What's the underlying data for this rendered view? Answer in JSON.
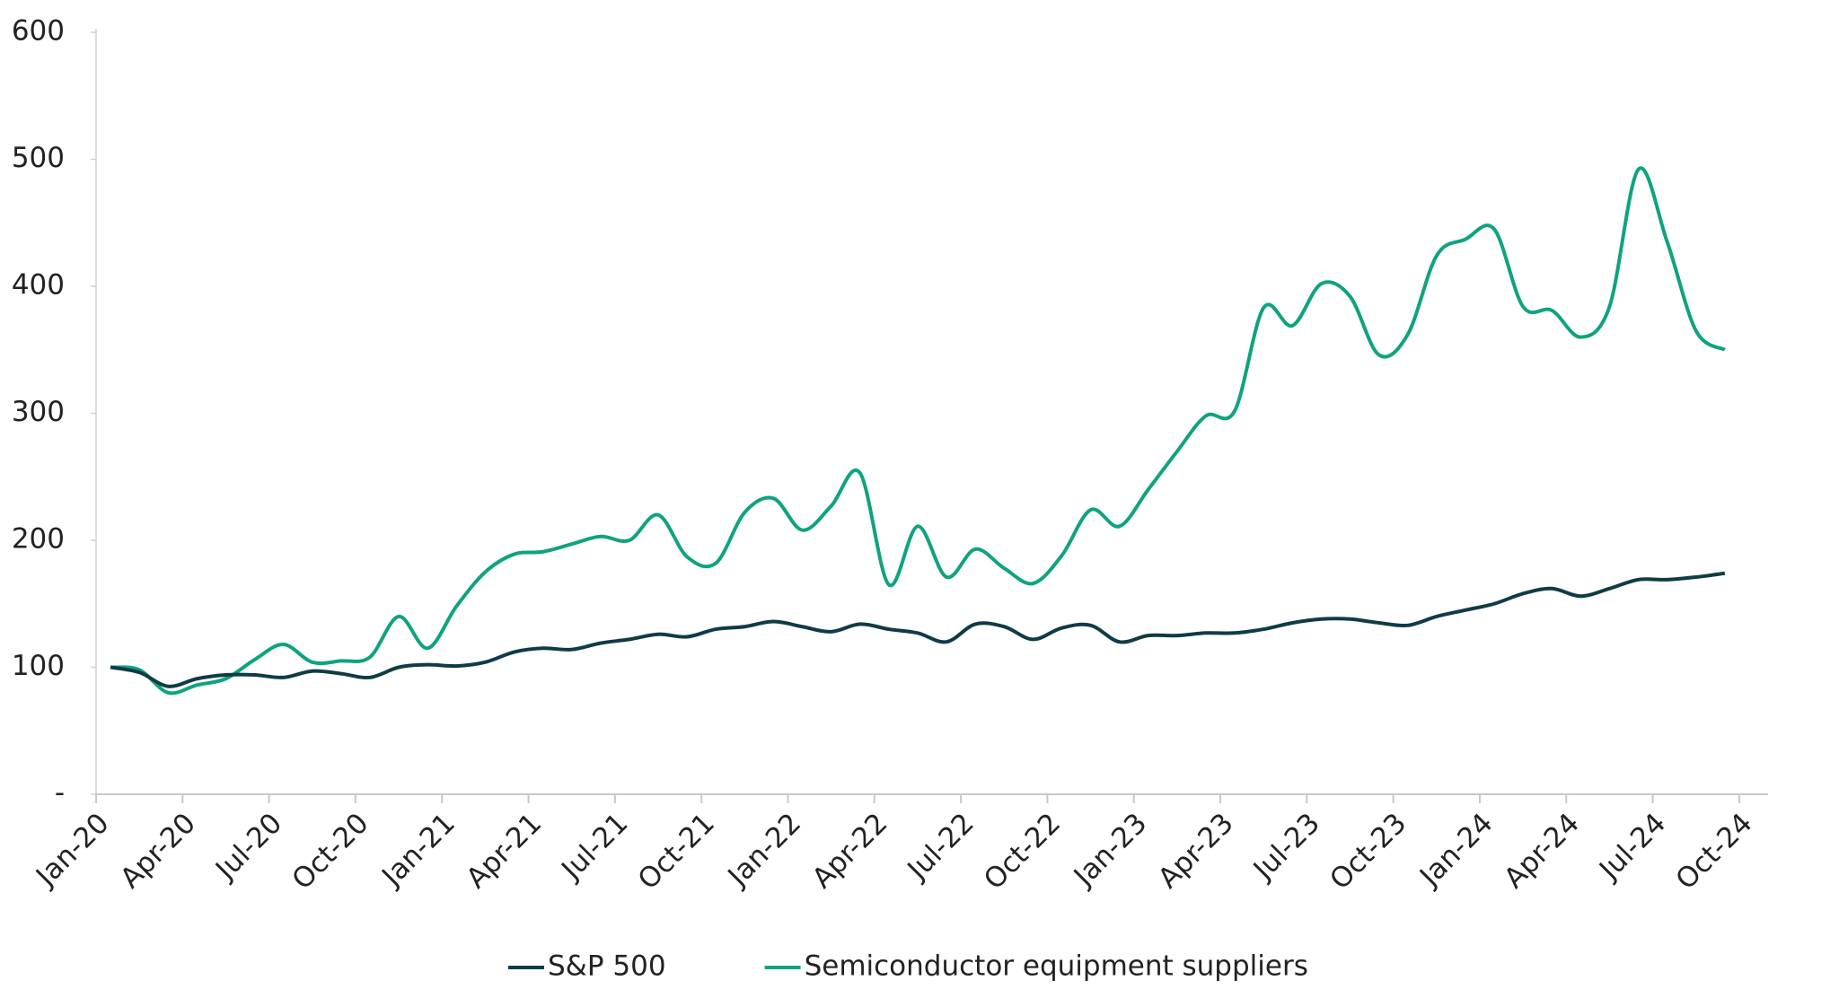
{
  "chart_data": {
    "type": "line",
    "categories": [
      "Jan-20",
      null,
      null,
      "Apr-20",
      null,
      null,
      "Jul-20",
      null,
      null,
      "Oct-20",
      null,
      null,
      "Jan-21",
      null,
      null,
      "Apr-21",
      null,
      null,
      "Jul-21",
      null,
      null,
      "Oct-21",
      null,
      null,
      "Jan-22",
      null,
      null,
      "Apr-22",
      null,
      null,
      "Jul-22",
      null,
      null,
      "Oct-22",
      null,
      null,
      "Jan-23",
      null,
      null,
      "Apr-23",
      null,
      null,
      "Jul-23",
      null,
      null,
      "Oct-23",
      null,
      null,
      "Jan-24",
      null,
      null,
      "Apr-24",
      null,
      null,
      "Jul-24",
      null,
      null,
      "Oct-24"
    ],
    "series": [
      {
        "name": "S&P 500",
        "color": "#0f3b47",
        "values": [
          100,
          96,
          85,
          91,
          94,
          94,
          92,
          97,
          95,
          92,
          100,
          102,
          101,
          104,
          112,
          115,
          114,
          119,
          122,
          126,
          124,
          130,
          132,
          136,
          132,
          128,
          134,
          130,
          127,
          120,
          134,
          132,
          122,
          131,
          133,
          120,
          125,
          125,
          127,
          127,
          130,
          135,
          138,
          138,
          135,
          133,
          140,
          145,
          150,
          158,
          162,
          156,
          162,
          169,
          169,
          171,
          174,
          null
        ]
      },
      {
        "name": "Semiconductor equipment suppliers",
        "color": "#0fa37f",
        "values": [
          100,
          98,
          80,
          86,
          91,
          106,
          118,
          104,
          105,
          108,
          140,
          115,
          148,
          175,
          189,
          191,
          197,
          203,
          200,
          220,
          187,
          182,
          222,
          233,
          208,
          227,
          253,
          165,
          211,
          171,
          193,
          178,
          166,
          188,
          224,
          211,
          240,
          270,
          298,
          302,
          383,
          369,
          402,
          392,
          346,
          362,
          424,
          437,
          445,
          384,
          381,
          360,
          384,
          492,
          435,
          365,
          350,
          null
        ]
      }
    ],
    "ylim": [
      0,
      600
    ],
    "yticks": [
      {
        "value": 0,
        "label": "-"
      },
      100,
      200,
      300,
      400,
      500,
      600
    ],
    "legend": "bottom"
  }
}
